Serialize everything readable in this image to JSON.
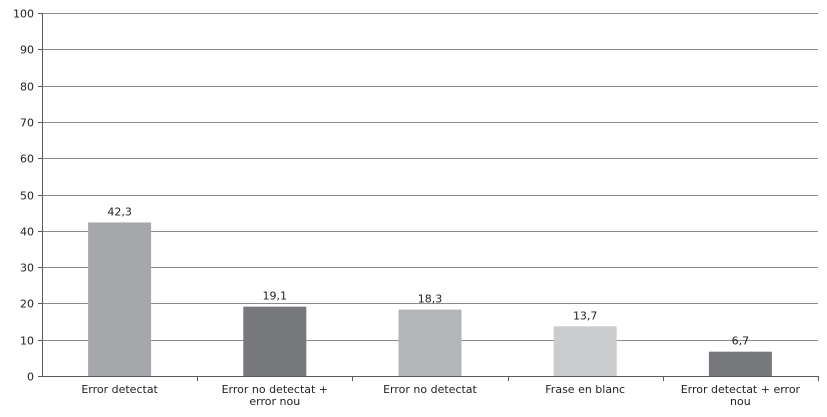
{
  "chart_data": {
    "type": "bar",
    "title": "",
    "xlabel": "",
    "ylabel": "",
    "categories": [
      "Error detectat",
      "Error no detectat + error nou",
      "Error no detectat",
      "Frase en blanc",
      "Error detectat + error nou"
    ],
    "values": [
      42.3,
      19.1,
      18.3,
      13.7,
      6.7
    ],
    "value_labels": [
      "42,3",
      "19,1",
      "18,3",
      "13,7",
      "6,7"
    ],
    "bar_colors": [
      "#a6a7ab",
      "#77787c",
      "#b4b5b8",
      "#cbcccd",
      "#77787c"
    ],
    "ylim": [
      0,
      100
    ],
    "yticks": [
      0,
      10,
      20,
      30,
      40,
      50,
      60,
      70,
      80,
      90,
      100
    ],
    "grid": true,
    "legend": "none"
  }
}
